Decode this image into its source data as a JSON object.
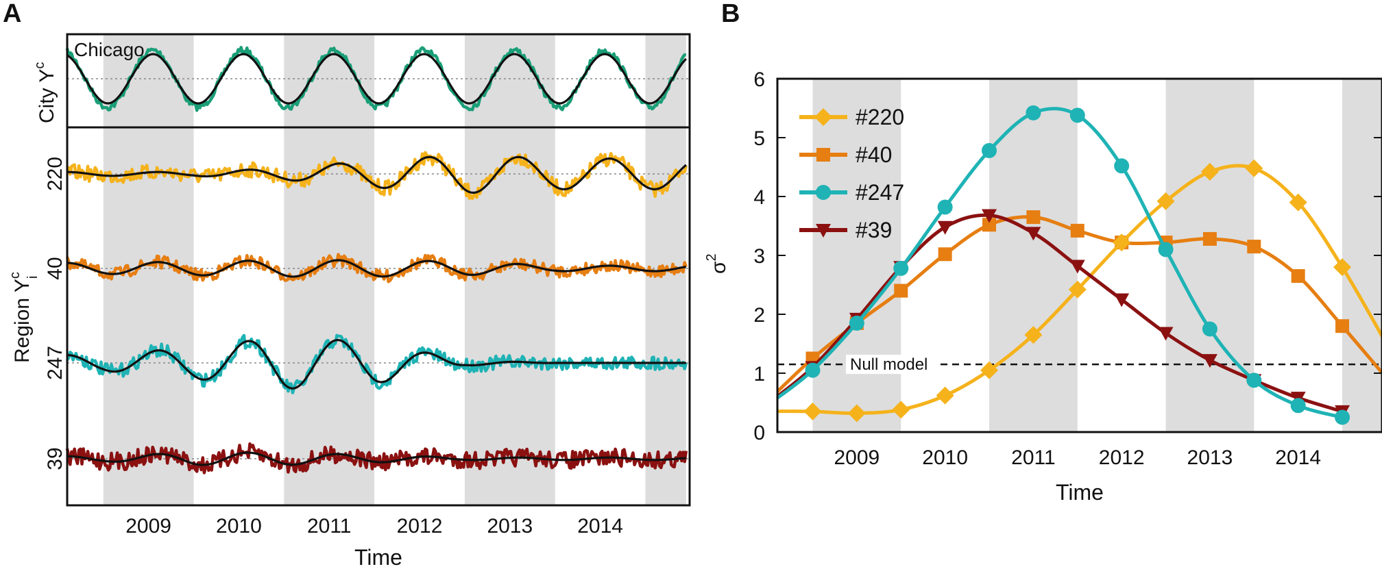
{
  "panel_a": {
    "letter": "A",
    "city_label": "Chicago",
    "city_axis_label": "City Y",
    "city_axis_sup": "c",
    "region_axis_label": "Region Y",
    "region_axis_sup": "c",
    "region_axis_sub": "i",
    "xlabel": "Time",
    "years": [
      "2009",
      "2010",
      "2011",
      "2012",
      "2013",
      "2014"
    ],
    "rows": [
      {
        "label": "220",
        "color": "#F5B21B"
      },
      {
        "label": "40",
        "color": "#E67E12"
      },
      {
        "label": "247",
        "color": "#1FB3B5"
      },
      {
        "label": "39",
        "color": "#8B1111"
      }
    ],
    "city_color": "#1A9E77",
    "shade_color": "#DDDDDD"
  },
  "panel_b": {
    "letter": "B",
    "ylabel": "σ",
    "ylabel_sup": "2",
    "xlabel": "Time",
    "null_label": "Null model"
  },
  "chart_data": [
    {
      "type": "line",
      "panel": "A",
      "xlabel": "Time",
      "x_ticks": [
        "2009",
        "2010",
        "2011",
        "2012",
        "2013",
        "2014"
      ],
      "ylim_note": "stacked oscillating time series, no numeric y ticks",
      "shaded_years": [
        "2009",
        "2011",
        "2013"
      ],
      "series": [
        {
          "name": "Chicago",
          "color": "#1A9E77",
          "period_months": 12,
          "amplitude": 1.0
        },
        {
          "name": "220",
          "color": "#F5B21B",
          "amplitude_by_year": [
            0.1,
            0.1,
            0.3,
            0.7,
            1.0,
            0.8
          ]
        },
        {
          "name": "40",
          "color": "#E67E12",
          "amplitude_by_year": [
            0.4,
            0.5,
            0.6,
            0.6,
            0.5,
            0.2
          ]
        },
        {
          "name": "247",
          "color": "#1FB3B5",
          "amplitude_by_year": [
            0.3,
            0.6,
            1.0,
            0.8,
            0.1,
            0.0
          ]
        },
        {
          "name": "39",
          "color": "#8B1111",
          "amplitude_by_year": [
            0.2,
            0.5,
            0.5,
            0.3,
            0.1,
            0.1
          ]
        }
      ]
    },
    {
      "type": "line",
      "panel": "B",
      "xlabel": "Time",
      "ylabel": "σ2",
      "x_ticks": [
        "2009",
        "2010",
        "2011",
        "2012",
        "2013",
        "2014"
      ],
      "ylim": [
        0,
        6
      ],
      "y_ticks": [
        0,
        1,
        2,
        3,
        4,
        5,
        6
      ],
      "xlim": [
        2008.4,
        2015.25
      ],
      "shaded_ranges": [
        [
          2008.8,
          2009.8
        ],
        [
          2010.8,
          2011.8
        ],
        [
          2012.8,
          2013.8
        ],
        [
          2014.8,
          2015.25
        ]
      ],
      "null_model": 1.15,
      "legend_placement": "top-left",
      "series": [
        {
          "name": "#220",
          "color": "#F5B21B",
          "marker": "diamond",
          "x": [
            2008.8,
            2009.3,
            2009.8,
            2010.3,
            2010.8,
            2011.3,
            2011.8,
            2012.3,
            2012.8,
            2013.3,
            2013.8,
            2014.3,
            2014.8,
            2015.3
          ],
          "y": [
            0.35,
            0.32,
            0.38,
            0.62,
            1.05,
            1.65,
            2.42,
            3.22,
            3.92,
            4.42,
            4.48,
            3.9,
            2.8,
            1.5
          ]
        },
        {
          "name": "#40",
          "color": "#E67E12",
          "marker": "square",
          "x": [
            2008.8,
            2009.3,
            2009.8,
            2010.3,
            2010.8,
            2011.3,
            2011.8,
            2012.3,
            2012.8,
            2013.3,
            2013.8,
            2014.3,
            2014.8,
            2015.3
          ],
          "y": [
            1.25,
            1.85,
            2.4,
            3.02,
            3.52,
            3.65,
            3.42,
            3.22,
            3.22,
            3.28,
            3.15,
            2.65,
            1.8,
            0.92
          ]
        },
        {
          "name": "#247",
          "color": "#1FB3B5",
          "marker": "circle",
          "x": [
            2008.8,
            2009.3,
            2009.8,
            2010.3,
            2010.8,
            2011.3,
            2011.8,
            2012.3,
            2012.8,
            2013.3,
            2013.8,
            2014.3,
            2014.8
          ],
          "y": [
            1.05,
            1.85,
            2.78,
            3.82,
            4.78,
            5.42,
            5.38,
            4.52,
            3.1,
            1.75,
            0.88,
            0.45,
            0.25
          ]
        },
        {
          "name": "#39",
          "color": "#8B1111",
          "marker": "triangle-down",
          "x": [
            2008.8,
            2009.3,
            2009.8,
            2010.3,
            2010.8,
            2011.3,
            2011.8,
            2012.3,
            2012.8,
            2013.3,
            2013.8,
            2014.3,
            2014.8
          ],
          "y": [
            1.1,
            1.92,
            2.8,
            3.48,
            3.68,
            3.38,
            2.82,
            2.25,
            1.68,
            1.22,
            0.88,
            0.58,
            0.35
          ]
        }
      ]
    }
  ]
}
